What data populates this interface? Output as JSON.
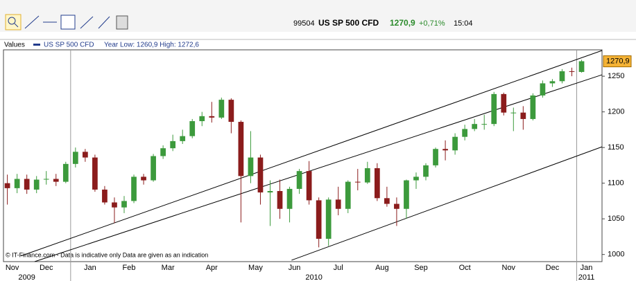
{
  "header": {
    "code": "99504",
    "name": "US SP 500 CFD",
    "price": "1270,9",
    "change": "+0,71%",
    "time": "15:04"
  },
  "legend": {
    "label": "Values",
    "series": "US SP 500 CFD",
    "range": "Year Low: 1260,9 High: 1272,6"
  },
  "chart_data": {
    "type": "candlestick",
    "categories": [
      null,
      null,
      null,
      null,
      null,
      null,
      null,
      null,
      null,
      null,
      null,
      null,
      null,
      null,
      null,
      null,
      null,
      null,
      null,
      null,
      null,
      null,
      null,
      null,
      null,
      null,
      null,
      null,
      null,
      null,
      null,
      null,
      null,
      null,
      null,
      null,
      null,
      null,
      null,
      null,
      null,
      null,
      null,
      null,
      null,
      null,
      null,
      null,
      null,
      null,
      null,
      null,
      null,
      null,
      null,
      null,
      null,
      null,
      null,
      null
    ],
    "open": [
      1100,
      1093,
      1106,
      1091,
      1105,
      1106,
      1102,
      1127,
      1144,
      1136,
      1091,
      1073,
      1066,
      1075,
      1109,
      1104,
      1138,
      1149,
      1159,
      1166,
      1187,
      1194,
      1192,
      1217,
      1186,
      1110,
      1136,
      1087,
      1089,
      1064,
      1092,
      1117,
      1076,
      1022,
      1077,
      1064,
      1102,
      1101,
      1121,
      1079,
      1071,
      1064,
      1104,
      1109,
      1125,
      1148,
      1146,
      1165,
      1176,
      1183,
      1183,
      1225,
      1199,
      1199,
      1190,
      1223,
      1240,
      1243,
      1257,
      1256
    ],
    "high": [
      1112,
      1113,
      1112,
      1110,
      1117,
      1113,
      1130,
      1150,
      1148,
      1140,
      1096,
      1080,
      1082,
      1112,
      1113,
      1141,
      1153,
      1168,
      1175,
      1190,
      1200,
      1214,
      1220,
      1219,
      1188,
      1173,
      1140,
      1104,
      1105,
      1095,
      1120,
      1131,
      1080,
      1080,
      1095,
      1104,
      1120,
      1130,
      1128,
      1095,
      1080,
      1105,
      1115,
      1128,
      1150,
      1160,
      1170,
      1182,
      1190,
      1196,
      1228,
      1227,
      1206,
      1208,
      1226,
      1244,
      1246,
      1260,
      1262,
      1273
    ],
    "low": [
      1070,
      1086,
      1085,
      1086,
      1098,
      1096,
      1100,
      1122,
      1130,
      1088,
      1070,
      1044,
      1058,
      1072,
      1098,
      1102,
      1134,
      1145,
      1155,
      1163,
      1180,
      1185,
      1190,
      1170,
      1045,
      1100,
      1070,
      1040,
      1050,
      1045,
      1085,
      1070,
      1010,
      1012,
      1055,
      1058,
      1090,
      1099,
      1075,
      1067,
      1040,
      1050,
      1092,
      1104,
      1122,
      1132,
      1140,
      1160,
      1173,
      1175,
      1180,
      1195,
      1173,
      1175,
      1188,
      1220,
      1235,
      1240,
      1250,
      1255
    ],
    "close": [
      1093,
      1106,
      1091,
      1105,
      1106,
      1102,
      1127,
      1144,
      1136,
      1091,
      1073,
      1066,
      1075,
      1109,
      1104,
      1138,
      1149,
      1159,
      1166,
      1187,
      1194,
      1192,
      1217,
      1186,
      1110,
      1136,
      1087,
      1089,
      1064,
      1092,
      1117,
      1076,
      1022,
      1077,
      1064,
      1102,
      1101,
      1121,
      1079,
      1071,
      1064,
      1104,
      1109,
      1125,
      1148,
      1146,
      1165,
      1176,
      1183,
      1183,
      1225,
      1199,
      1199,
      1190,
      1223,
      1240,
      1243,
      1257,
      1256,
      1271
    ],
    "up_color": "#3c9a3c",
    "down_color": "#8b1c1c",
    "xlim": [
      -0.4,
      61.1
    ],
    "xticks": [
      {
        "value": 0.5,
        "label": "Nov"
      },
      {
        "value": 4,
        "label": "Dec"
      },
      {
        "value": 8.5,
        "label": "Jan"
      },
      {
        "value": 12.5,
        "label": "Feb"
      },
      {
        "value": 16.5,
        "label": "Mar"
      },
      {
        "value": 21,
        "label": "Apr"
      },
      {
        "value": 25.5,
        "label": "May"
      },
      {
        "value": 29.5,
        "label": "Jun"
      },
      {
        "value": 34,
        "label": "Jul"
      },
      {
        "value": 38.5,
        "label": "Aug"
      },
      {
        "value": 42.5,
        "label": "Sep"
      },
      {
        "value": 47,
        "label": "Oct"
      },
      {
        "value": 51.5,
        "label": "Nov"
      },
      {
        "value": 56,
        "label": "Dec"
      },
      {
        "value": 59.5,
        "label": "Jan"
      }
    ],
    "year_ticks": [
      {
        "value": 2,
        "label": "2009"
      },
      {
        "value": 31.5,
        "label": "2010"
      },
      {
        "value": 59.5,
        "label": "2011"
      }
    ],
    "year_boundaries": [
      6.5,
      58.5
    ],
    "ylim": [
      990,
      1287
    ],
    "yticks": [
      1000,
      1050,
      1100,
      1150,
      1200,
      1250
    ],
    "last_value": {
      "value": 1270.9,
      "label": "1270,9"
    },
    "trend_lines": [
      {
        "x": [
          1.4,
          61.1
        ],
        "y": [
          998,
          1286
        ]
      },
      {
        "x": [
          2.8,
          61.1
        ],
        "y": [
          990,
          1252
        ]
      },
      {
        "x": [
          29.2,
          61.1
        ],
        "y": [
          992,
          1151
        ]
      }
    ],
    "footnote": "© IT-Finance.com - Data is indicative only Data are given as an indication"
  }
}
